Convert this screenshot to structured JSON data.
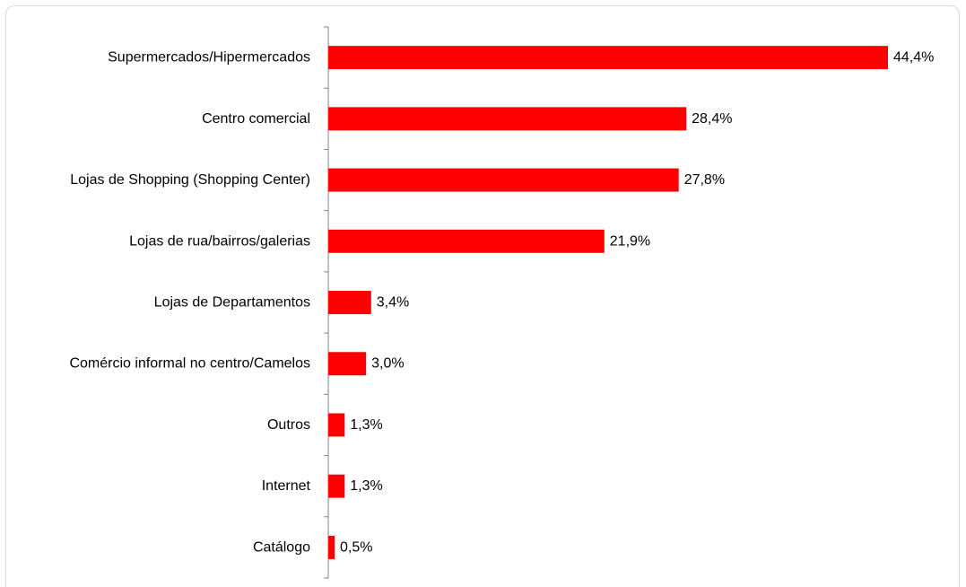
{
  "chart_data": {
    "type": "bar",
    "orientation": "horizontal",
    "categories": [
      "Supermercados/Hipermercados",
      "Centro comercial",
      "Lojas de Shopping (Shopping Center)",
      "Lojas de rua/bairros/galerias",
      "Lojas de Departamentos",
      "Comércio informal no centro/Camelos",
      "Outros",
      "Internet",
      "Catálogo"
    ],
    "values": [
      44.4,
      28.4,
      27.8,
      21.9,
      3.4,
      3.0,
      1.3,
      1.3,
      0.5
    ],
    "data_labels": [
      "44,4%",
      "28,4%",
      "27,8%",
      "21,9%",
      "3,4%",
      "3,0%",
      "1,3%",
      "1,3%",
      "0,5%"
    ],
    "title": "",
    "xlabel": "",
    "ylabel": "",
    "xlim": [
      0,
      50
    ],
    "grid": false,
    "legend": "none",
    "bar_color": "#ff0000"
  }
}
